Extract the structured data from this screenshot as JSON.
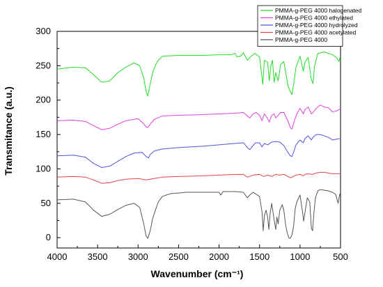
{
  "chart_data": {
    "type": "line",
    "title": "",
    "xlabel": "Wavenumber (cm⁻¹)",
    "ylabel": "Transmitance (a.u.)",
    "xlim": [
      4000,
      500
    ],
    "ylim": [
      -15,
      300
    ],
    "x_reversed": true,
    "x_ticks": [
      4000,
      3500,
      3000,
      2500,
      2000,
      1500,
      1000,
      500
    ],
    "y_ticks": [
      0,
      50,
      100,
      150,
      200,
      250,
      300
    ],
    "grid": false,
    "legend_position": "top-right",
    "series": [
      {
        "name": "PMMA-g-PEG 4000 halogenated",
        "color": "#22dd22",
        "points": [
          [
            4000,
            245
          ],
          [
            3800,
            248
          ],
          [
            3650,
            247
          ],
          [
            3550,
            237
          ],
          [
            3450,
            226
          ],
          [
            3350,
            228
          ],
          [
            3250,
            240
          ],
          [
            3150,
            248
          ],
          [
            3050,
            254
          ],
          [
            2980,
            250
          ],
          [
            2930,
            232
          ],
          [
            2900,
            212
          ],
          [
            2880,
            206
          ],
          [
            2860,
            218
          ],
          [
            2820,
            240
          ],
          [
            2780,
            252
          ],
          [
            2750,
            258
          ],
          [
            2700,
            264
          ],
          [
            2500,
            265
          ],
          [
            2200,
            265
          ],
          [
            2000,
            266
          ],
          [
            1850,
            266
          ],
          [
            1800,
            268
          ],
          [
            1780,
            263
          ],
          [
            1730,
            264
          ],
          [
            1700,
            269
          ],
          [
            1650,
            258
          ],
          [
            1620,
            262
          ],
          [
            1560,
            268
          ],
          [
            1500,
            263
          ],
          [
            1460,
            223
          ],
          [
            1440,
            258
          ],
          [
            1400,
            255
          ],
          [
            1380,
            228
          ],
          [
            1360,
            250
          ],
          [
            1340,
            258
          ],
          [
            1320,
            226
          ],
          [
            1300,
            240
          ],
          [
            1270,
            228
          ],
          [
            1240,
            252
          ],
          [
            1200,
            256
          ],
          [
            1150,
            222
          ],
          [
            1120,
            212
          ],
          [
            1100,
            208
          ],
          [
            1070,
            230
          ],
          [
            1050,
            248
          ],
          [
            1000,
            264
          ],
          [
            960,
            242
          ],
          [
            940,
            255
          ],
          [
            900,
            262
          ],
          [
            860,
            230
          ],
          [
            840,
            224
          ],
          [
            820,
            250
          ],
          [
            780,
            268
          ],
          [
            700,
            270
          ],
          [
            600,
            266
          ],
          [
            550,
            262
          ],
          [
            520,
            256
          ],
          [
            505,
            262
          ]
        ]
      },
      {
        "name": "PMMA-g-PEG 4000 ethylated",
        "color": "#e040e0",
        "points": [
          [
            4000,
            170
          ],
          [
            3800,
            171
          ],
          [
            3650,
            169
          ],
          [
            3550,
            163
          ],
          [
            3450,
            157
          ],
          [
            3350,
            159
          ],
          [
            3250,
            165
          ],
          [
            3150,
            170
          ],
          [
            3000,
            173
          ],
          [
            2950,
            168
          ],
          [
            2900,
            161
          ],
          [
            2880,
            160
          ],
          [
            2850,
            165
          ],
          [
            2800,
            172
          ],
          [
            2700,
            177
          ],
          [
            2500,
            178
          ],
          [
            2200,
            179
          ],
          [
            2000,
            180
          ],
          [
            1800,
            181
          ],
          [
            1700,
            182
          ],
          [
            1650,
            177
          ],
          [
            1620,
            174
          ],
          [
            1580,
            180
          ],
          [
            1540,
            182
          ],
          [
            1500,
            178
          ],
          [
            1470,
            170
          ],
          [
            1440,
            180
          ],
          [
            1410,
            175
          ],
          [
            1380,
            168
          ],
          [
            1350,
            178
          ],
          [
            1320,
            180
          ],
          [
            1300,
            174
          ],
          [
            1270,
            178
          ],
          [
            1240,
            182
          ],
          [
            1200,
            182
          ],
          [
            1150,
            170
          ],
          [
            1120,
            160
          ],
          [
            1100,
            158
          ],
          [
            1070,
            170
          ],
          [
            1040,
            180
          ],
          [
            1000,
            188
          ],
          [
            960,
            180
          ],
          [
            940,
            186
          ],
          [
            900,
            190
          ],
          [
            860,
            180
          ],
          [
            840,
            182
          ],
          [
            800,
            188
          ],
          [
            750,
            193
          ],
          [
            700,
            190
          ],
          [
            650,
            189
          ],
          [
            600,
            183
          ],
          [
            550,
            184
          ],
          [
            510,
            187
          ]
        ]
      },
      {
        "name": "PMMA-g-PEG 4000 hydrolyzed",
        "color": "#5050e0",
        "points": [
          [
            4000,
            119
          ],
          [
            3800,
            120
          ],
          [
            3650,
            117
          ],
          [
            3550,
            108
          ],
          [
            3450,
            102
          ],
          [
            3350,
            104
          ],
          [
            3250,
            111
          ],
          [
            3150,
            118
          ],
          [
            3050,
            123
          ],
          [
            2950,
            124
          ],
          [
            2900,
            118
          ],
          [
            2870,
            116
          ],
          [
            2850,
            121
          ],
          [
            2800,
            126
          ],
          [
            2700,
            129
          ],
          [
            2500,
            131
          ],
          [
            2200,
            133
          ],
          [
            2000,
            135
          ],
          [
            1800,
            137
          ],
          [
            1700,
            138
          ],
          [
            1650,
            131
          ],
          [
            1620,
            128
          ],
          [
            1580,
            134
          ],
          [
            1550,
            138
          ],
          [
            1500,
            138
          ],
          [
            1470,
            132
          ],
          [
            1440,
            137
          ],
          [
            1400,
            135
          ],
          [
            1350,
            139
          ],
          [
            1300,
            140
          ],
          [
            1250,
            139
          ],
          [
            1200,
            134
          ],
          [
            1150,
            124
          ],
          [
            1120,
            119
          ],
          [
            1100,
            118
          ],
          [
            1080,
            124
          ],
          [
            1050,
            135
          ],
          [
            1000,
            142
          ],
          [
            960,
            138
          ],
          [
            940,
            144
          ],
          [
            900,
            148
          ],
          [
            860,
            142
          ],
          [
            840,
            146
          ],
          [
            800,
            150
          ],
          [
            750,
            150
          ],
          [
            700,
            148
          ],
          [
            650,
            146
          ],
          [
            600,
            142
          ],
          [
            560,
            143
          ],
          [
            510,
            144
          ]
        ]
      },
      {
        "name": "PMMA-g-PEG 4000 acetylated",
        "color": "#e04444",
        "points": [
          [
            4000,
            88
          ],
          [
            3800,
            89
          ],
          [
            3650,
            88
          ],
          [
            3550,
            84
          ],
          [
            3450,
            79
          ],
          [
            3350,
            80
          ],
          [
            3250,
            83
          ],
          [
            3150,
            85
          ],
          [
            3000,
            86
          ],
          [
            2900,
            84
          ],
          [
            2850,
            85
          ],
          [
            2700,
            88
          ],
          [
            2500,
            89
          ],
          [
            2200,
            90
          ],
          [
            2000,
            91
          ],
          [
            1800,
            92
          ],
          [
            1700,
            92
          ],
          [
            1650,
            88
          ],
          [
            1620,
            89
          ],
          [
            1580,
            91
          ],
          [
            1500,
            92
          ],
          [
            1450,
            89
          ],
          [
            1400,
            91
          ],
          [
            1350,
            89
          ],
          [
            1300,
            92
          ],
          [
            1250,
            91
          ],
          [
            1200,
            92
          ],
          [
            1150,
            89
          ],
          [
            1120,
            87
          ],
          [
            1100,
            88
          ],
          [
            1050,
            91
          ],
          [
            1000,
            92
          ],
          [
            960,
            90
          ],
          [
            940,
            92
          ],
          [
            900,
            93
          ],
          [
            850,
            92
          ],
          [
            800,
            94
          ],
          [
            750,
            95
          ],
          [
            700,
            95
          ],
          [
            650,
            94
          ],
          [
            600,
            93
          ],
          [
            550,
            93
          ],
          [
            510,
            93
          ]
        ]
      },
      {
        "name": "PMMA-g-PEG 4000",
        "color": "#555555",
        "points": [
          [
            4000,
            55
          ],
          [
            3800,
            56
          ],
          [
            3650,
            52
          ],
          [
            3550,
            40
          ],
          [
            3450,
            31
          ],
          [
            3350,
            34
          ],
          [
            3250,
            41
          ],
          [
            3150,
            47
          ],
          [
            3050,
            50
          ],
          [
            2980,
            44
          ],
          [
            2930,
            20
          ],
          [
            2900,
            2
          ],
          [
            2880,
            -1
          ],
          [
            2850,
            10
          ],
          [
            2820,
            28
          ],
          [
            2780,
            42
          ],
          [
            2750,
            52
          ],
          [
            2700,
            60
          ],
          [
            2600,
            64
          ],
          [
            2400,
            66
          ],
          [
            2200,
            66
          ],
          [
            2000,
            66
          ],
          [
            1980,
            62
          ],
          [
            1950,
            67
          ],
          [
            1800,
            67
          ],
          [
            1700,
            66
          ],
          [
            1650,
            58
          ],
          [
            1620,
            62
          ],
          [
            1580,
            66
          ],
          [
            1500,
            60
          ],
          [
            1470,
            38
          ],
          [
            1455,
            10
          ],
          [
            1440,
            32
          ],
          [
            1420,
            40
          ],
          [
            1400,
            30
          ],
          [
            1385,
            12
          ],
          [
            1370,
            34
          ],
          [
            1350,
            50
          ],
          [
            1320,
            26
          ],
          [
            1300,
            12
          ],
          [
            1285,
            30
          ],
          [
            1270,
            20
          ],
          [
            1250,
            40
          ],
          [
            1220,
            48
          ],
          [
            1200,
            40
          ],
          [
            1180,
            20
          ],
          [
            1160,
            8
          ],
          [
            1140,
            0
          ],
          [
            1120,
            -1
          ],
          [
            1100,
            4
          ],
          [
            1080,
            16
          ],
          [
            1060,
            42
          ],
          [
            1040,
            52
          ],
          [
            1000,
            62
          ],
          [
            970,
            38
          ],
          [
            955,
            24
          ],
          [
            940,
            36
          ],
          [
            910,
            58
          ],
          [
            880,
            52
          ],
          [
            860,
            14
          ],
          [
            845,
            10
          ],
          [
            830,
            34
          ],
          [
            810,
            58
          ],
          [
            780,
            68
          ],
          [
            750,
            70
          ],
          [
            700,
            69
          ],
          [
            650,
            68
          ],
          [
            600,
            66
          ],
          [
            560,
            63
          ],
          [
            530,
            50
          ],
          [
            515,
            60
          ],
          [
            505,
            64
          ]
        ]
      }
    ]
  }
}
